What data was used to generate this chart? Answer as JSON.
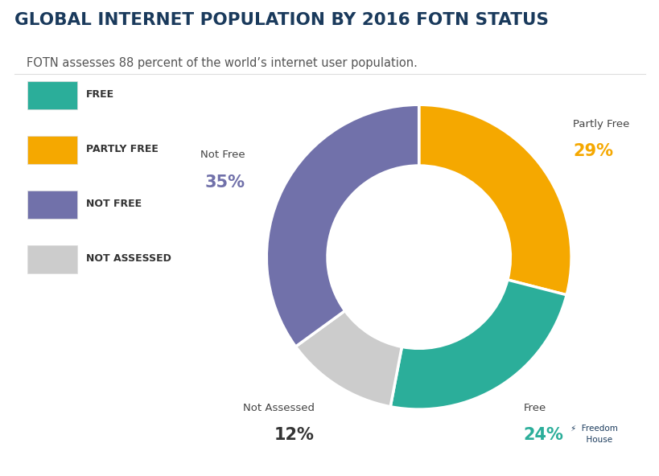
{
  "title": "GLOBAL INTERNET POPULATION BY 2016 FOTN STATUS",
  "subtitle": "FOTN assesses 88 percent of the world’s internet user population.",
  "slices": [
    {
      "label": "Partly Free",
      "value": 29,
      "color": "#F5A800",
      "pct_label": "29%",
      "pct_color": "#F5A800"
    },
    {
      "label": "Free",
      "value": 24,
      "color": "#2BAE9A",
      "pct_label": "24%",
      "pct_color": "#2BAE9A"
    },
    {
      "label": "Not Assessed",
      "value": 12,
      "color": "#CCCCCC",
      "pct_label": "12%",
      "pct_color": "#333333"
    },
    {
      "label": "Not Free",
      "value": 35,
      "color": "#7171AA",
      "pct_label": "35%",
      "pct_color": "#7171AA"
    }
  ],
  "legend_items": [
    {
      "label": "FREE",
      "color": "#2BAE9A"
    },
    {
      "label": "PARTLY FREE",
      "color": "#F5A800"
    },
    {
      "label": "NOT FREE",
      "color": "#7171AA"
    },
    {
      "label": "NOT ASSESSED",
      "color": "#CCCCCC"
    }
  ],
  "background_color": "#FFFFFF",
  "title_color": "#1A3A5C",
  "subtitle_color": "#555555",
  "wedge_edge_color": "#FFFFFF",
  "donut_width": 0.4,
  "start_angle": 90,
  "label_offsets": {
    "Partly Free": [
      1.22,
      0.06,
      -0.1
    ],
    "Free": [
      1.22,
      0.06,
      -0.1
    ],
    "Not Assessed": [
      1.22,
      0.06,
      -0.1
    ],
    "Not Free": [
      1.22,
      0.06,
      -0.1
    ]
  },
  "freedom_house_color": "#1A3A5C"
}
